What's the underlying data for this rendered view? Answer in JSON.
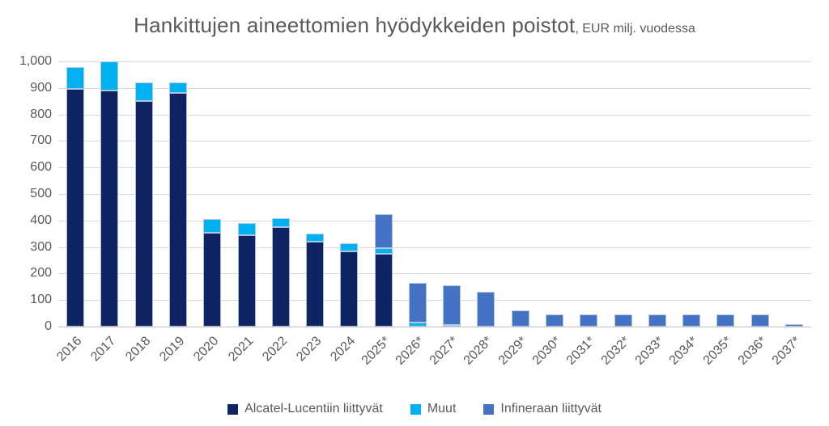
{
  "title": {
    "main": "Hankittujen aineettomien hyödykkeiden poistot",
    "unit": ", EUR milj. vuodessa"
  },
  "chart_data": {
    "type": "bar",
    "stacked": true,
    "title": "Hankittujen aineettomien hyödykkeiden poistot",
    "subtitle": "EUR milj. vuodessa",
    "categories": [
      "2016",
      "2017",
      "2018",
      "2019",
      "2020",
      "2021",
      "2022",
      "2023",
      "2024",
      "2025*",
      "2026*",
      "2027*",
      "2028*",
      "2029*",
      "2030*",
      "2031*",
      "2032*",
      "2033*",
      "2034*",
      "2035*",
      "2036*",
      "2037*"
    ],
    "series": [
      {
        "name": "Alcatel-Lucentiin liittyvät",
        "color": "#0E2361",
        "values": [
          895,
          890,
          850,
          880,
          355,
          345,
          375,
          320,
          285,
          275,
          0,
          0,
          0,
          0,
          0,
          0,
          0,
          0,
          0,
          0,
          0,
          0
        ]
      },
      {
        "name": "Muut",
        "color": "#00B0F0",
        "values": [
          85,
          110,
          70,
          40,
          50,
          45,
          35,
          30,
          30,
          20,
          15,
          5,
          0,
          0,
          0,
          0,
          0,
          0,
          0,
          0,
          0,
          0
        ]
      },
      {
        "name": "Infineraan liittyvät",
        "color": "#4472C4",
        "values": [
          0,
          0,
          0,
          0,
          0,
          0,
          0,
          0,
          0,
          130,
          150,
          150,
          130,
          60,
          45,
          45,
          45,
          45,
          45,
          45,
          45,
          8
        ]
      }
    ],
    "ylim": [
      0,
      1000
    ],
    "ytick_step": 100,
    "ytick_labels": [
      "0",
      "100",
      "200",
      "300",
      "400",
      "500",
      "600",
      "700",
      "800",
      "900",
      "1,000"
    ],
    "grid": true,
    "legend_position": "bottom",
    "colors": {
      "text": "#595959",
      "gridline": "#d9d9d9",
      "axisline": "#bfbfbf",
      "background": "#ffffff"
    }
  }
}
